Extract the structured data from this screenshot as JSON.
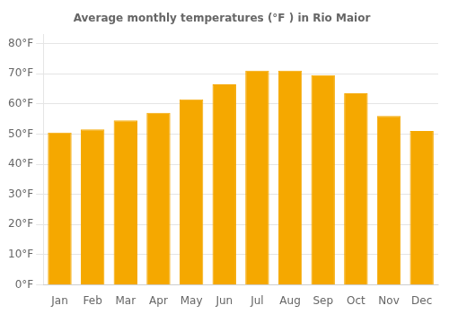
{
  "chart_data": {
    "type": "bar",
    "title": "Average monthly temperatures (°F ) in Rio Maior",
    "categories": [
      "Jan",
      "Feb",
      "Mar",
      "Apr",
      "May",
      "Jun",
      "Jul",
      "Aug",
      "Sep",
      "Oct",
      "Nov",
      "Dec"
    ],
    "values": [
      50.5,
      51.5,
      54.5,
      57,
      61.5,
      66.5,
      71,
      71,
      69.5,
      63.5,
      56,
      51
    ],
    "color": "#F5A800",
    "ylim": [
      0,
      83
    ],
    "yticks": [
      {
        "value": 0,
        "label": "0°F"
      },
      {
        "value": 10,
        "label": "10°F"
      },
      {
        "value": 20,
        "label": "20°F"
      },
      {
        "value": 30,
        "label": "30°F"
      },
      {
        "value": 40,
        "label": "40°F"
      },
      {
        "value": 50,
        "label": "50°F"
      },
      {
        "value": 60,
        "label": "60°F"
      },
      {
        "value": 70,
        "label": "70°F"
      },
      {
        "value": 80,
        "label": "80°F"
      }
    ],
    "grid": true
  }
}
